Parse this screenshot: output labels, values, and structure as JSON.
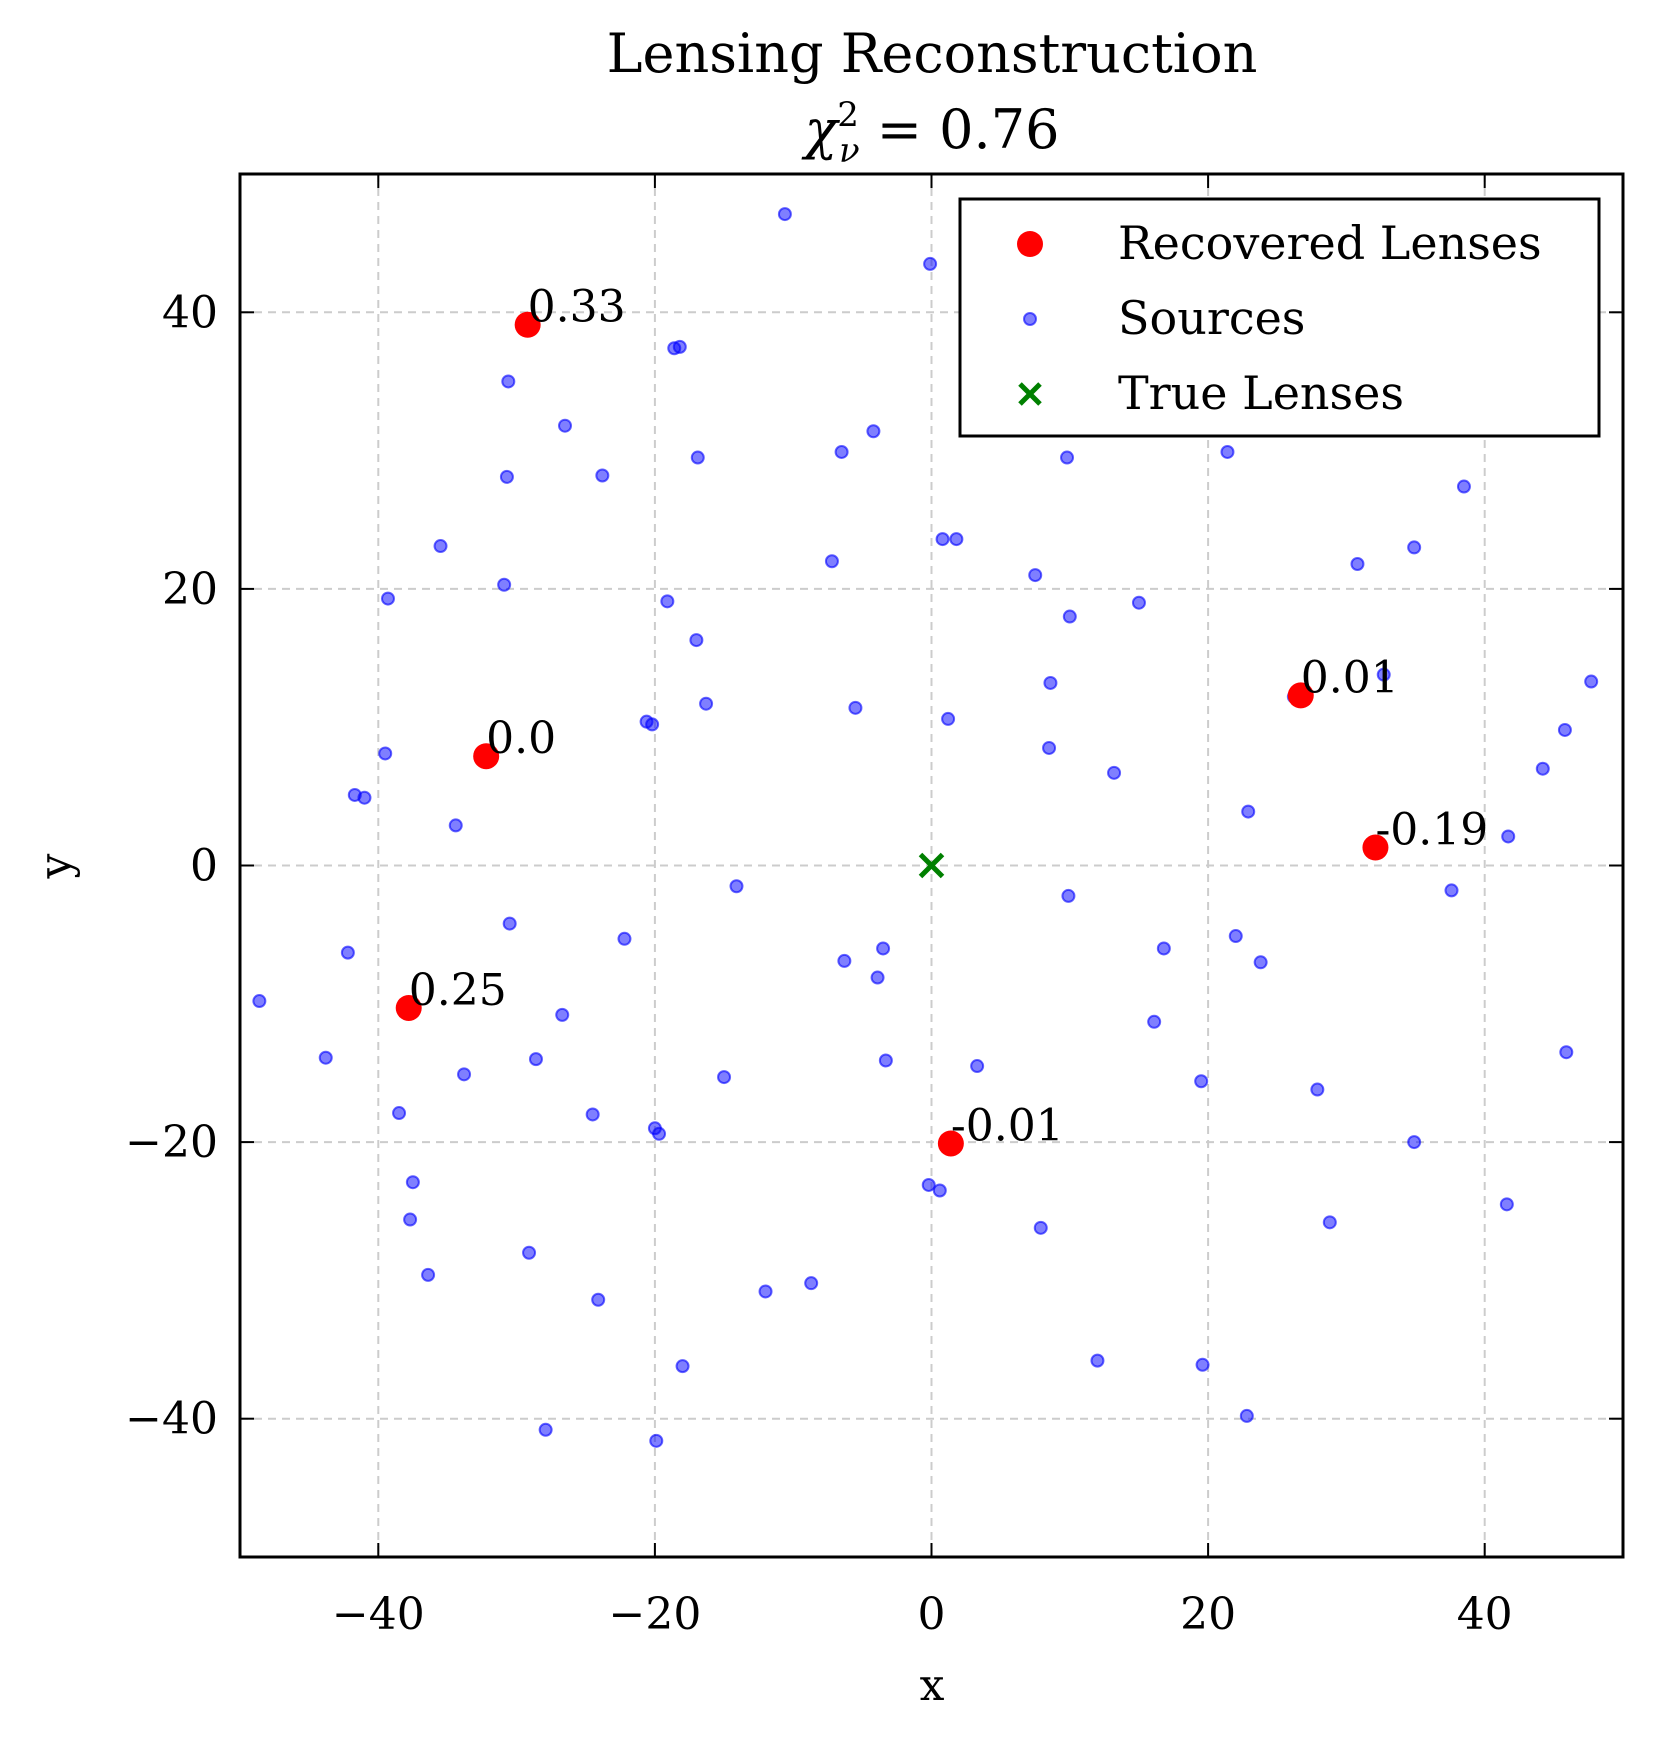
{
  "chart_data": {
    "type": "scatter",
    "title": "Lensing Reconstruction",
    "subtitle_prefix": "χ",
    "subtitle_sup": "2",
    "subtitle_sub": "ν",
    "subtitle_value": " = 0.76",
    "xlabel": "x",
    "ylabel": "y",
    "xlim": [
      -50,
      50
    ],
    "ylim": [
      -50,
      50
    ],
    "xticks": [
      -40,
      -20,
      0,
      20,
      40
    ],
    "yticks": [
      -40,
      -20,
      0,
      20,
      40
    ],
    "xtick_labels": [
      "−40",
      "−20",
      "0",
      "20",
      "40"
    ],
    "ytick_labels": [
      "−40",
      "−20",
      "0",
      "20",
      "40"
    ],
    "grid": true,
    "legend_position": "top-right",
    "legend": [
      {
        "name": "Recovered Lenses",
        "marker": "large-circle",
        "color": "#ff0000"
      },
      {
        "name": "Sources",
        "marker": "small-circle",
        "color": "#0000ff"
      },
      {
        "name": "True Lenses",
        "marker": "x",
        "color": "#008000"
      }
    ],
    "series": [
      {
        "name": "Recovered Lenses",
        "color": "#ff0000",
        "points": [
          {
            "x": -29.2,
            "y": 39.1,
            "label": "0.33"
          },
          {
            "x": -32.2,
            "y": 7.9,
            "label": "0.0"
          },
          {
            "x": -37.8,
            "y": -10.3,
            "label": "0.25"
          },
          {
            "x": 1.4,
            "y": -20.1,
            "label": "-0.01"
          },
          {
            "x": 26.7,
            "y": 12.3,
            "label": "0.01"
          },
          {
            "x": 32.1,
            "y": 1.3,
            "label": "-0.19"
          }
        ]
      },
      {
        "name": "Sources",
        "color": "#0000ff",
        "points": [
          [
            -10.6,
            47.1
          ],
          [
            -0.1,
            43.5
          ],
          [
            -18.6,
            37.4
          ],
          [
            -18.2,
            37.5
          ],
          [
            -30.6,
            35.0
          ],
          [
            -26.5,
            31.8
          ],
          [
            -4.2,
            31.4
          ],
          [
            -6.5,
            29.9
          ],
          [
            -16.9,
            29.5
          ],
          [
            9.8,
            29.5
          ],
          [
            21.4,
            29.9
          ],
          [
            -23.8,
            28.2
          ],
          [
            -30.7,
            28.1
          ],
          [
            38.5,
            27.4
          ],
          [
            -35.5,
            23.1
          ],
          [
            0.8,
            23.6
          ],
          [
            1.8,
            23.6
          ],
          [
            34.9,
            23.0
          ],
          [
            -7.2,
            22.0
          ],
          [
            30.8,
            21.8
          ],
          [
            7.5,
            21.0
          ],
          [
            -30.9,
            20.3
          ],
          [
            -39.3,
            19.3
          ],
          [
            -19.1,
            19.1
          ],
          [
            15.0,
            19.0
          ],
          [
            10.0,
            18.0
          ],
          [
            -17.0,
            16.3
          ],
          [
            32.7,
            13.8
          ],
          [
            47.7,
            13.3
          ],
          [
            8.6,
            13.2
          ],
          [
            26.2,
            12.2
          ],
          [
            -16.3,
            11.7
          ],
          [
            -5.5,
            11.4
          ],
          [
            1.2,
            10.6
          ],
          [
            -20.6,
            10.4
          ],
          [
            -20.2,
            10.2
          ],
          [
            45.8,
            9.8
          ],
          [
            8.5,
            8.5
          ],
          [
            -39.5,
            8.1
          ],
          [
            -32.0,
            7.9
          ],
          [
            44.2,
            7.0
          ],
          [
            13.2,
            6.7
          ],
          [
            -41.7,
            5.1
          ],
          [
            -41.0,
            4.9
          ],
          [
            22.9,
            3.9
          ],
          [
            -34.4,
            2.9
          ],
          [
            41.7,
            2.1
          ],
          [
            -14.1,
            -1.5
          ],
          [
            37.6,
            -1.8
          ],
          [
            9.9,
            -2.2
          ],
          [
            -30.5,
            -4.2
          ],
          [
            -22.2,
            -5.3
          ],
          [
            22.0,
            -5.1
          ],
          [
            -3.5,
            -6.0
          ],
          [
            16.8,
            -6.0
          ],
          [
            -42.2,
            -6.3
          ],
          [
            -6.3,
            -6.9
          ],
          [
            23.8,
            -7.0
          ],
          [
            -3.9,
            -8.1
          ],
          [
            -48.6,
            -9.8
          ],
          [
            -26.7,
            -10.8
          ],
          [
            16.1,
            -11.3
          ],
          [
            45.9,
            -13.5
          ],
          [
            -43.8,
            -13.9
          ],
          [
            -28.6,
            -14.0
          ],
          [
            -3.3,
            -14.1
          ],
          [
            3.3,
            -14.5
          ],
          [
            -33.8,
            -15.1
          ],
          [
            -15.0,
            -15.3
          ],
          [
            19.5,
            -15.6
          ],
          [
            27.9,
            -16.2
          ],
          [
            -38.5,
            -17.9
          ],
          [
            -24.5,
            -18.0
          ],
          [
            -20.0,
            -19.0
          ],
          [
            -19.7,
            -19.4
          ],
          [
            34.9,
            -20.0
          ],
          [
            -0.2,
            -23.1
          ],
          [
            0.6,
            -23.5
          ],
          [
            -37.5,
            -22.9
          ],
          [
            41.6,
            -24.5
          ],
          [
            -37.7,
            -25.6
          ],
          [
            28.8,
            -25.8
          ],
          [
            7.9,
            -26.2
          ],
          [
            -29.1,
            -28.0
          ],
          [
            -36.4,
            -29.6
          ],
          [
            -8.7,
            -30.2
          ],
          [
            -12.0,
            -30.8
          ],
          [
            -24.1,
            -31.4
          ],
          [
            12.0,
            -35.8
          ],
          [
            19.6,
            -36.1
          ],
          [
            -18.0,
            -36.2
          ],
          [
            22.8,
            -39.8
          ],
          [
            -27.9,
            -40.8
          ],
          [
            -19.9,
            -41.6
          ]
        ]
      },
      {
        "name": "True Lenses",
        "color": "#008000",
        "points": [
          [
            0.0,
            0.0
          ]
        ]
      }
    ]
  }
}
